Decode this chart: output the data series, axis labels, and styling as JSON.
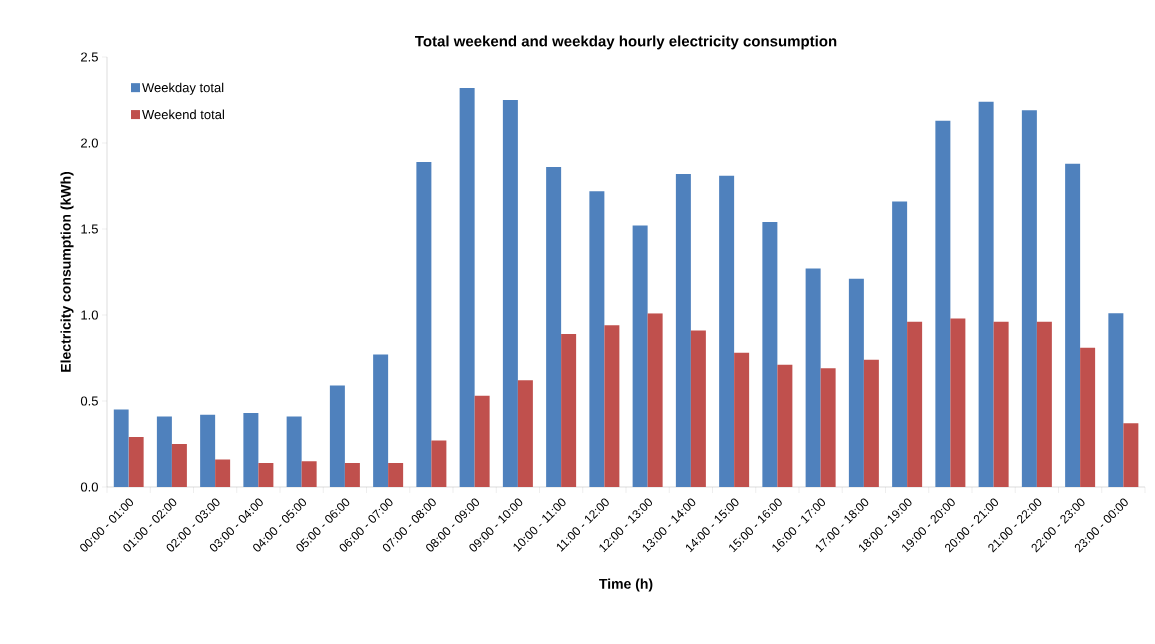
{
  "chart_data": {
    "type": "bar",
    "title": "Total weekend and weekday hourly electricity consumption",
    "xlabel": "Time (h)",
    "ylabel": "Electricity consumption (kWh)",
    "categories": [
      "00:00 - 01:00",
      "01:00 - 02:00",
      "02:00 - 03:00",
      "03:00 - 04:00",
      "04:00 - 05:00",
      "05:00 - 06:00",
      "06:00 - 07:00",
      "07:00 - 08:00",
      "08:00 - 09:00",
      "09:00 - 10:00",
      "10:00 - 11:00",
      "11:00 - 12:00",
      "12:00 - 13:00",
      "13:00 - 14:00",
      "14:00 - 15:00",
      "15:00 - 16:00",
      "16:00 - 17:00",
      "17:00 - 18:00",
      "18:00 - 19:00",
      "19:00 - 20:00",
      "20:00 - 21:00",
      "21:00 - 22:00",
      "22:00 - 23:00",
      "23:00 - 00:00"
    ],
    "series": [
      {
        "name": "Weekday total",
        "color": "#4f81bd",
        "values": [
          0.45,
          0.41,
          0.42,
          0.43,
          0.41,
          0.59,
          0.77,
          1.89,
          2.32,
          2.25,
          1.86,
          1.72,
          1.52,
          1.82,
          1.81,
          1.54,
          1.27,
          1.21,
          1.66,
          2.13,
          2.24,
          2.19,
          1.88,
          1.01
        ]
      },
      {
        "name": "Weekend total",
        "color": "#c0504d",
        "values": [
          0.29,
          0.25,
          0.16,
          0.14,
          0.15,
          0.14,
          0.14,
          0.27,
          0.53,
          0.62,
          0.89,
          0.94,
          1.01,
          0.91,
          0.78,
          0.71,
          0.69,
          0.74,
          0.96,
          0.98,
          0.96,
          0.96,
          0.81,
          0.37
        ]
      }
    ],
    "ylim": [
      0,
      2.5
    ],
    "yticks": [
      {
        "value": 0,
        "label": "0.0"
      },
      {
        "value": 0.5,
        "label": "0.5"
      },
      {
        "value": 1,
        "label": "1.0"
      },
      {
        "value": 1.5,
        "label": "1.5"
      },
      {
        "value": 2,
        "label": "2.0"
      },
      {
        "value": 2.5,
        "label": "2.5"
      }
    ],
    "grid": false,
    "legend": "top left"
  }
}
